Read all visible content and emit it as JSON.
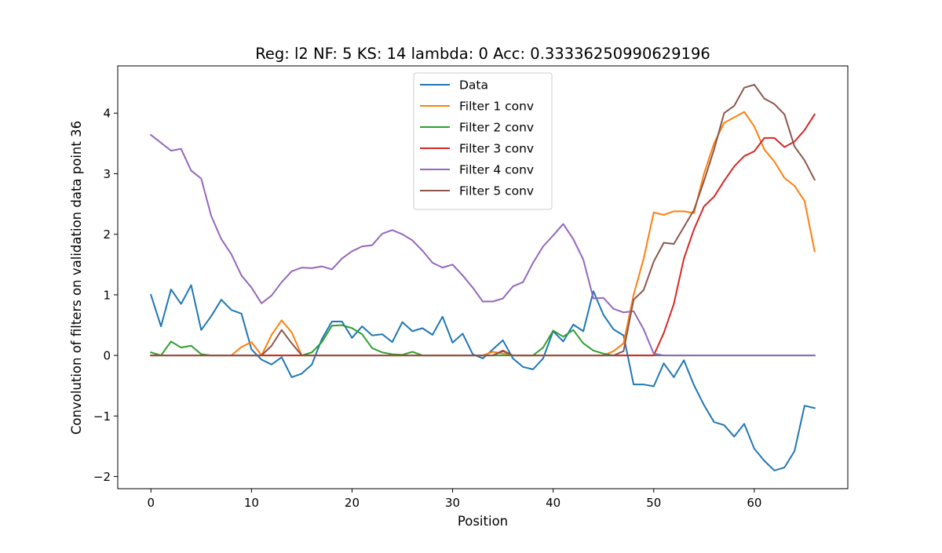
{
  "chart_data": {
    "type": "line",
    "title": "Reg: l2  NF: 5  KS: 14  lambda: 0 Acc: 0.33336250990629196",
    "xlabel": "Position",
    "ylabel": "Convolution of filters on validation data point 36",
    "xlim": [
      -3.3,
      69.3
    ],
    "ylim": [
      -2.2,
      4.78
    ],
    "x_ticks": [
      0,
      10,
      20,
      30,
      40,
      50,
      60
    ],
    "y_ticks": [
      -2,
      -1,
      0,
      1,
      2,
      3,
      4
    ],
    "y_tick_labels": [
      "−2",
      "−1",
      "0",
      "1",
      "2",
      "3",
      "4"
    ],
    "grid": false,
    "legend_position": "upper center",
    "x": [
      0,
      1,
      2,
      3,
      4,
      5,
      6,
      7,
      8,
      9,
      10,
      11,
      12,
      13,
      14,
      15,
      16,
      17,
      18,
      19,
      20,
      21,
      22,
      23,
      24,
      25,
      26,
      27,
      28,
      29,
      30,
      31,
      32,
      33,
      34,
      35,
      36,
      37,
      38,
      39,
      40,
      41,
      42,
      43,
      44,
      45,
      46,
      47,
      48,
      49,
      50,
      51,
      52,
      53,
      54,
      55,
      56,
      57,
      58,
      59,
      60,
      61,
      62,
      63,
      64,
      65,
      66
    ],
    "series": [
      {
        "name": "Data",
        "color": "#1f77b4",
        "values": [
          1.0,
          0.48,
          1.09,
          0.85,
          1.16,
          0.42,
          0.65,
          0.92,
          0.75,
          0.69,
          0.1,
          -0.07,
          -0.15,
          -0.03,
          -0.36,
          -0.3,
          -0.15,
          0.27,
          0.56,
          0.56,
          0.29,
          0.48,
          0.33,
          0.35,
          0.22,
          0.55,
          0.4,
          0.45,
          0.34,
          0.64,
          0.21,
          0.36,
          0.02,
          -0.05,
          0.1,
          0.25,
          -0.05,
          -0.19,
          -0.23,
          -0.05,
          0.4,
          0.23,
          0.51,
          0.4,
          1.06,
          0.67,
          0.43,
          0.33,
          -0.48,
          -0.48,
          -0.51,
          -0.13,
          -0.36,
          -0.08,
          -0.49,
          -0.82,
          -1.1,
          -1.15,
          -1.34,
          -1.13,
          -1.54,
          -1.74,
          -1.9,
          -1.85,
          -1.58,
          -0.83,
          -0.87
        ]
      },
      {
        "name": "Filter 1 conv",
        "color": "#ff7f0e",
        "values": [
          0,
          0,
          0,
          0,
          0,
          0,
          0,
          0,
          0,
          0.14,
          0.22,
          0,
          0.34,
          0.58,
          0.38,
          0,
          0,
          0,
          0,
          0,
          0,
          0,
          0,
          0,
          0,
          0,
          0,
          0,
          0,
          0,
          0,
          0,
          0,
          0,
          0.06,
          0.03,
          0,
          0,
          0,
          0,
          0,
          0,
          0,
          0,
          0,
          0,
          0.07,
          0.2,
          1.0,
          1.6,
          2.36,
          2.32,
          2.38,
          2.38,
          2.35,
          3.0,
          3.5,
          3.84,
          3.93,
          4.02,
          3.78,
          3.4,
          3.2,
          2.93,
          2.8,
          2.55,
          1.72
        ]
      },
      {
        "name": "Filter 2 conv",
        "color": "#2ca02c",
        "values": [
          0.05,
          0,
          0.23,
          0.13,
          0.16,
          0.02,
          0,
          0,
          0,
          0,
          0,
          0,
          0,
          0,
          0,
          0,
          0.05,
          0.22,
          0.49,
          0.5,
          0.45,
          0.35,
          0.12,
          0.05,
          0.02,
          0.01,
          0.06,
          0,
          0,
          0,
          0,
          0,
          0,
          0,
          0,
          0,
          0,
          0,
          0,
          0.13,
          0.41,
          0.31,
          0.42,
          0.2,
          0.08,
          0.03,
          0,
          0,
          0,
          0,
          0,
          0,
          0,
          0,
          0,
          0,
          0,
          0,
          0,
          0,
          0,
          0,
          0,
          0,
          0,
          0,
          0
        ]
      },
      {
        "name": "Filter 3 conv",
        "color": "#d62728",
        "values": [
          0,
          0,
          0,
          0,
          0,
          0,
          0,
          0,
          0,
          0,
          0,
          0,
          0,
          0,
          0,
          0,
          0,
          0,
          0,
          0,
          0,
          0,
          0,
          0,
          0,
          0,
          0,
          0,
          0,
          0,
          0,
          0,
          0,
          0,
          0,
          0.08,
          0,
          0,
          0,
          0,
          0,
          0,
          0,
          0,
          0,
          0,
          0,
          0,
          0,
          0,
          0,
          0.37,
          0.85,
          1.6,
          2.08,
          2.46,
          2.62,
          2.88,
          3.12,
          3.29,
          3.37,
          3.59,
          3.59,
          3.44,
          3.53,
          3.72,
          3.98
        ]
      },
      {
        "name": "Filter 4 conv",
        "color": "#9467bd",
        "values": [
          3.64,
          3.51,
          3.38,
          3.41,
          3.05,
          2.92,
          2.3,
          1.92,
          1.67,
          1.32,
          1.12,
          0.86,
          0.99,
          1.21,
          1.39,
          1.45,
          1.44,
          1.47,
          1.42,
          1.6,
          1.72,
          1.8,
          1.82,
          2.01,
          2.07,
          2.0,
          1.9,
          1.73,
          1.53,
          1.45,
          1.5,
          1.32,
          1.12,
          0.89,
          0.89,
          0.94,
          1.14,
          1.21,
          1.53,
          1.8,
          1.98,
          2.17,
          1.92,
          1.58,
          0.94,
          0.95,
          0.77,
          0.71,
          0.73,
          0.43,
          0.03,
          0,
          0,
          0,
          0,
          0,
          0,
          0,
          0,
          0,
          0,
          0,
          0,
          0,
          0,
          0,
          0
        ]
      },
      {
        "name": "Filter 5 conv",
        "color": "#8c564b",
        "values": [
          0,
          0,
          0,
          0,
          0,
          0,
          0,
          0,
          0,
          0,
          0,
          0,
          0.16,
          0.42,
          0.2,
          0,
          0,
          0,
          0,
          0,
          0,
          0,
          0,
          0,
          0,
          0,
          0,
          0,
          0,
          0,
          0,
          0,
          0,
          0,
          0,
          0.07,
          0,
          0,
          0,
          0,
          0,
          0,
          0,
          0,
          0,
          0,
          0,
          0.07,
          0.92,
          1.08,
          1.55,
          1.86,
          1.84,
          2.12,
          2.4,
          2.88,
          3.4,
          4.0,
          4.12,
          4.42,
          4.47,
          4.24,
          4.15,
          3.98,
          3.45,
          3.22,
          2.9
        ]
      }
    ]
  }
}
